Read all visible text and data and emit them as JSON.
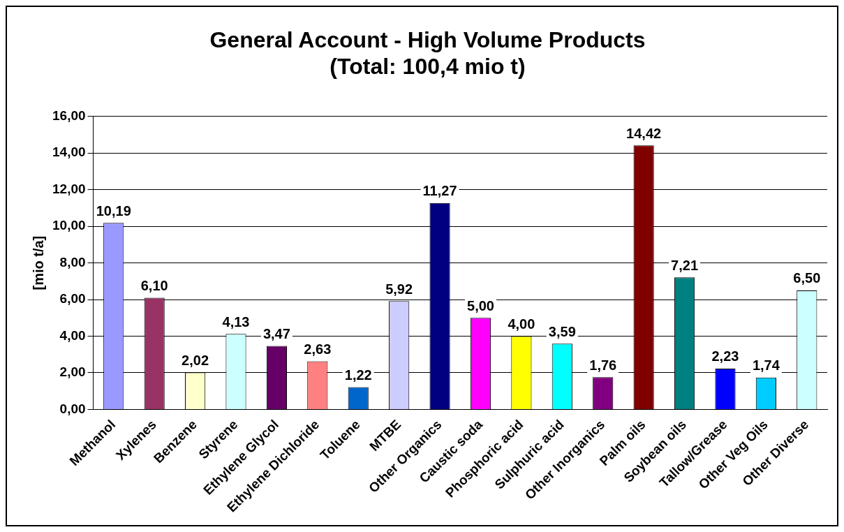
{
  "chart_data": {
    "type": "bar",
    "title": "General Account - High Volume Products\n(Total: 100,4 mio t)",
    "ylabel": "[mio t/a]",
    "categories": [
      "Methanol",
      "Xylenes",
      "Benzene",
      "Styrene",
      "Ethylene Glycol",
      "Ethylene Dichloride",
      "Toluene",
      "MTBE",
      "Other Organics",
      "Caustic soda",
      "Phosphoric acid",
      "Sulphuric acid",
      "Other Inorganics",
      "Palm oils",
      "Soybean oils",
      "Tallow/Grease",
      "Other Veg Oils",
      "Other Diverse"
    ],
    "values": [
      10.19,
      6.1,
      2.02,
      4.13,
      3.47,
      2.63,
      1.22,
      5.92,
      11.27,
      5.0,
      4.0,
      3.59,
      1.76,
      14.42,
      7.21,
      2.23,
      1.74,
      6.5
    ],
    "value_labels": [
      "10,19",
      "6,10",
      "2,02",
      "4,13",
      "3,47",
      "2,63",
      "1,22",
      "5,92",
      "11,27",
      "5,00",
      "4,00",
      "3,59",
      "1,76",
      "14,42",
      "7,21",
      "2,23",
      "1,74",
      "6,50"
    ],
    "colors": [
      "#9999ff",
      "#993366",
      "#ffffcc",
      "#ccffff",
      "#660066",
      "#ff8080",
      "#0066cc",
      "#ccccff",
      "#000080",
      "#ff00ff",
      "#ffff00",
      "#00ffff",
      "#800080",
      "#800000",
      "#008080",
      "#0000ff",
      "#00ccff",
      "#ccffff"
    ],
    "ylim": [
      0,
      16
    ],
    "yticks": [
      {
        "value": 0,
        "label": "0,00"
      },
      {
        "value": 2,
        "label": "2,00"
      },
      {
        "value": 4,
        "label": "4,00"
      },
      {
        "value": 6,
        "label": "6,00"
      },
      {
        "value": 8,
        "label": "8,00"
      },
      {
        "value": 10,
        "label": "10,00"
      },
      {
        "value": 12,
        "label": "12,00"
      },
      {
        "value": 14,
        "label": "14,00"
      },
      {
        "value": 16,
        "label": "16,00"
      }
    ],
    "grid": "y",
    "legend": false
  }
}
